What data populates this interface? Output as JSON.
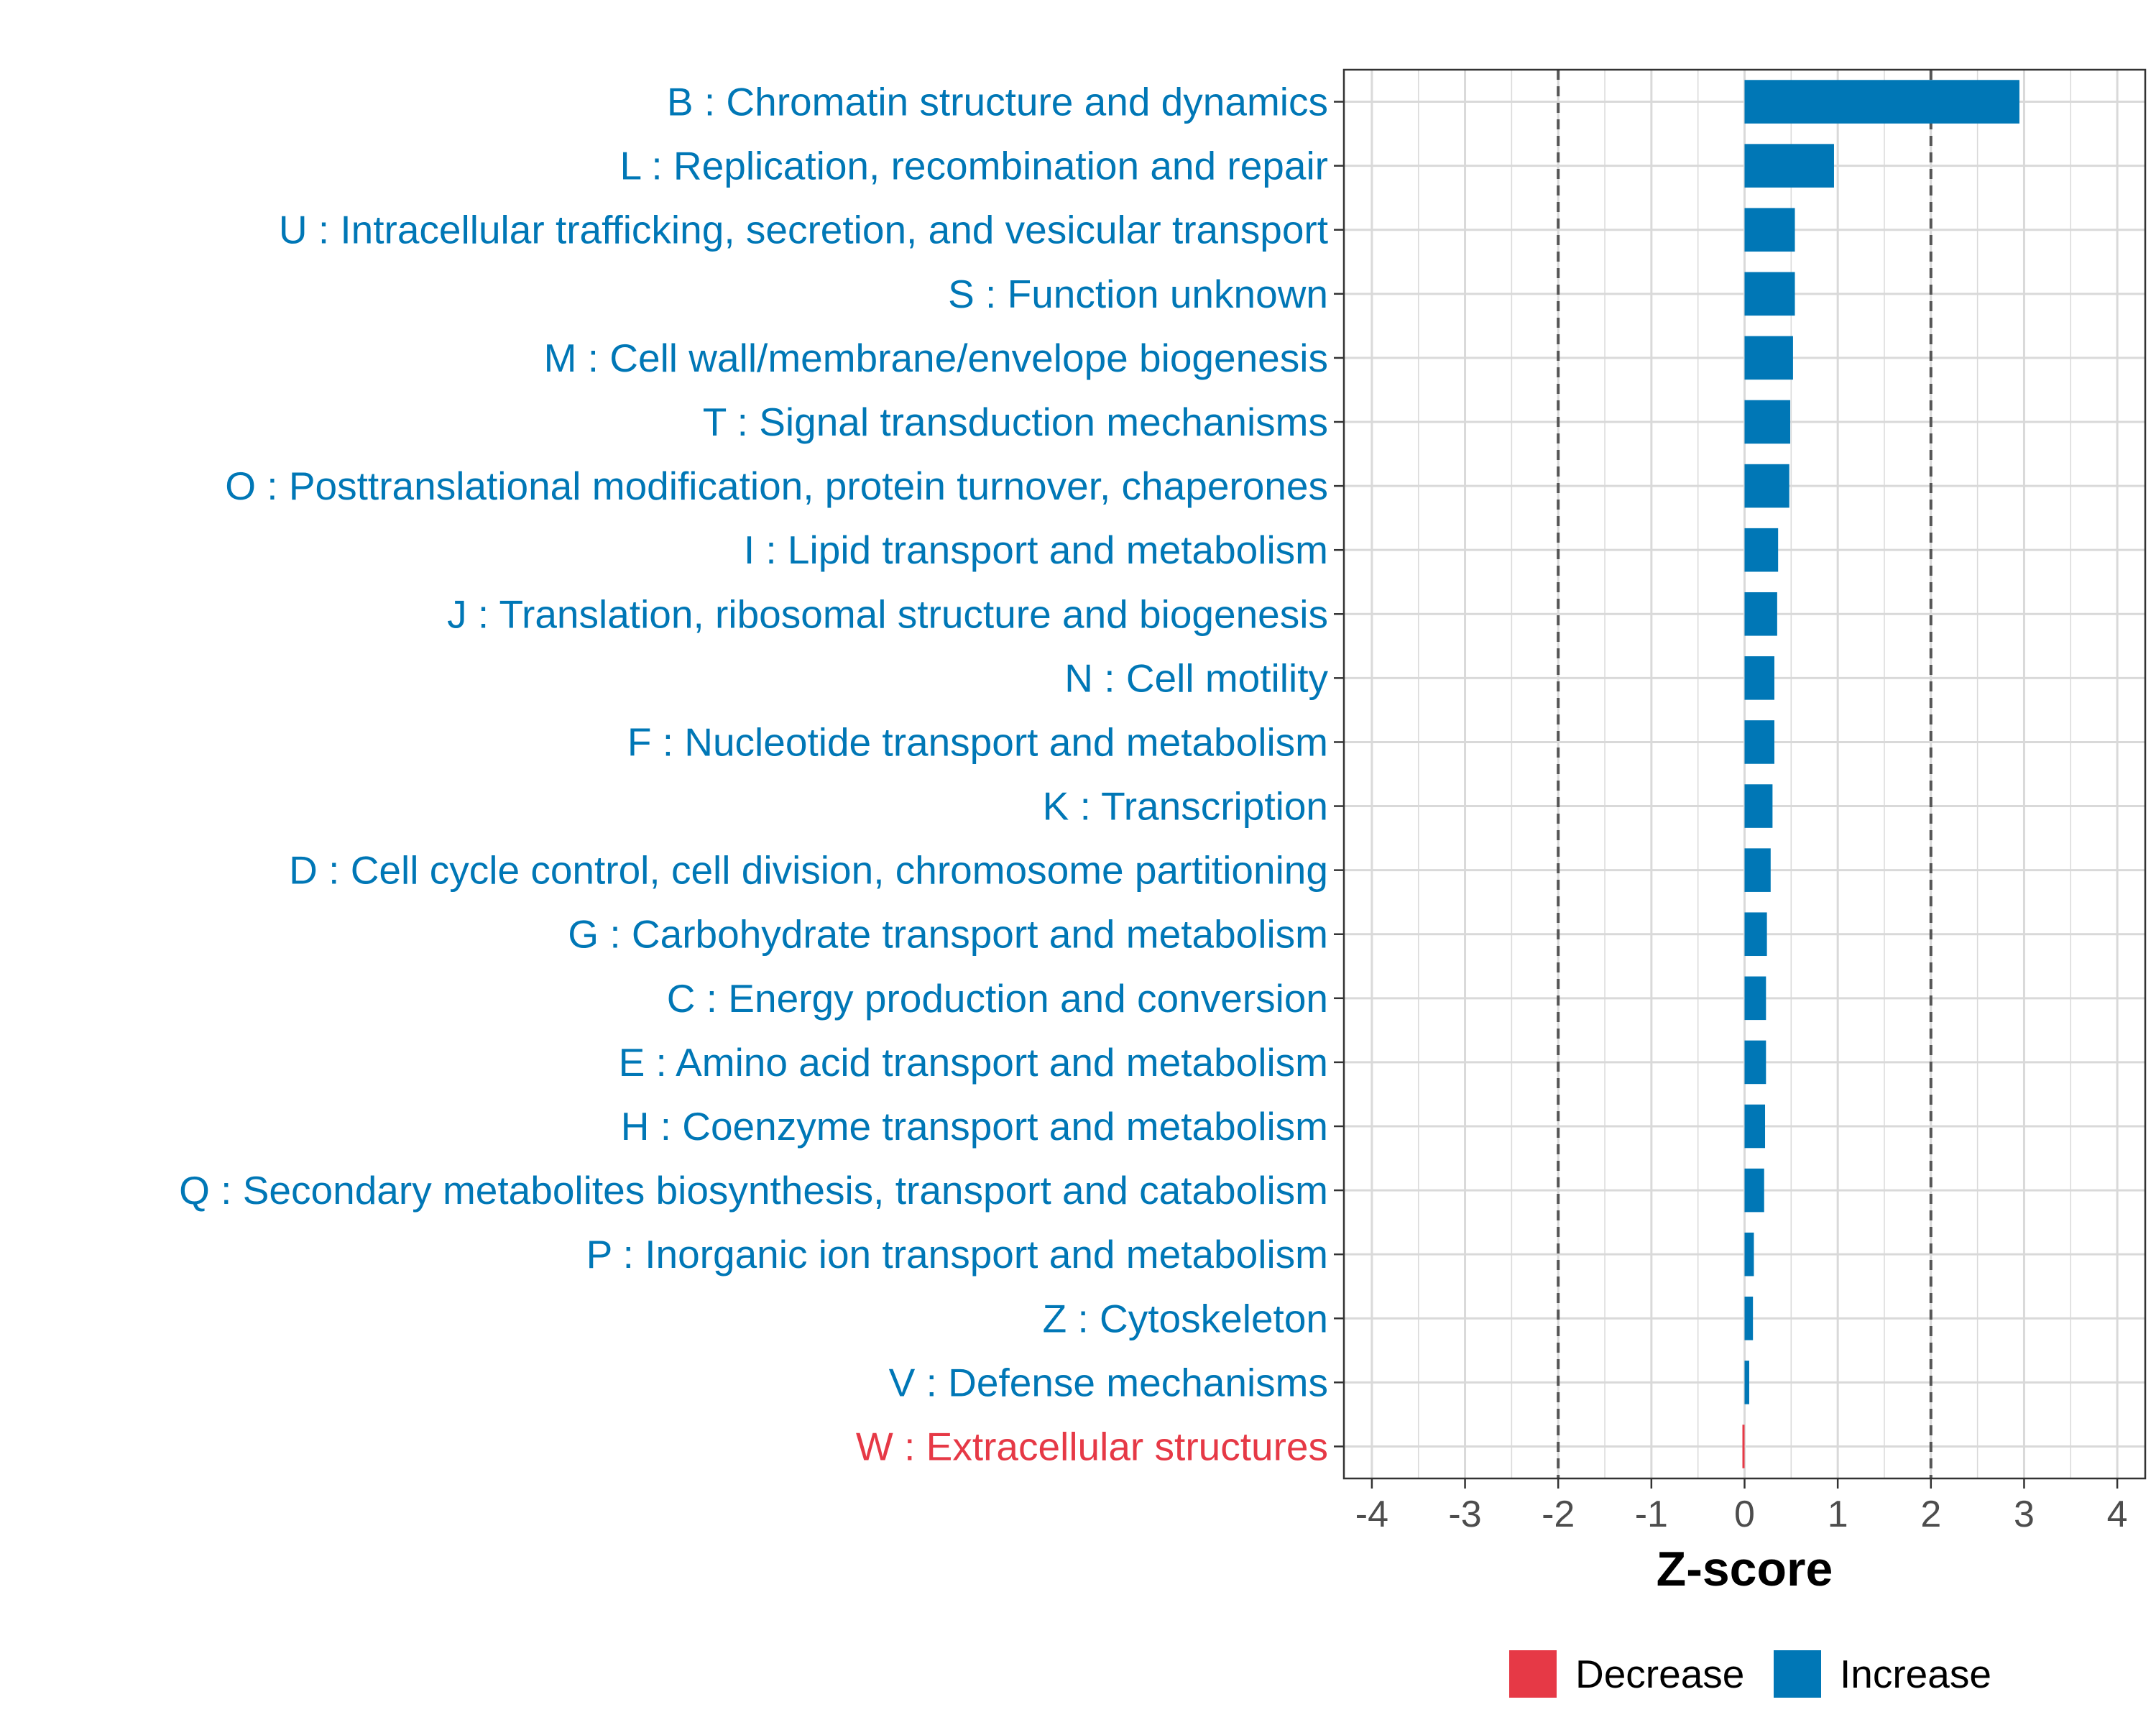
{
  "chart_data": {
    "type": "bar",
    "orientation": "horizontal",
    "title": "",
    "xlabel": "Z-score",
    "ylabel": "",
    "xlim": [
      -4.3,
      4.3
    ],
    "x_ticks": [
      -4,
      -3,
      -2,
      -1,
      0,
      1,
      2,
      3,
      4
    ],
    "x_tick_labels": [
      "-4",
      "-3",
      "-2",
      "-1",
      "0",
      "1",
      "2",
      "3",
      "4"
    ],
    "threshold_lines": [
      -2,
      2
    ],
    "grid": true,
    "categories": [
      "B : Chromatin structure and dynamics",
      "L : Replication, recombination and repair",
      "U : Intracellular trafficking, secretion, and vesicular transport",
      "S : Function unknown",
      "M : Cell wall/membrane/envelope biogenesis",
      "T : Signal transduction mechanisms",
      "O : Posttranslational modification, protein turnover, chaperones",
      "I : Lipid transport and metabolism",
      "J : Translation, ribosomal structure and biogenesis",
      "N : Cell motility",
      "F : Nucleotide transport and metabolism",
      "K : Transcription",
      "D : Cell cycle control, cell division, chromosome partitioning",
      "G : Carbohydrate transport and metabolism",
      "C : Energy production and conversion",
      "E : Amino acid transport and metabolism",
      "H : Coenzyme transport and metabolism",
      "Q : Secondary metabolites biosynthesis, transport and catabolism",
      "P : Inorganic ion transport and metabolism",
      "Z : Cytoskeleton",
      "V : Defense mechanisms",
      "W : Extracellular structures"
    ],
    "values": [
      2.95,
      0.96,
      0.54,
      0.54,
      0.52,
      0.49,
      0.48,
      0.36,
      0.35,
      0.32,
      0.32,
      0.3,
      0.28,
      0.24,
      0.23,
      0.23,
      0.22,
      0.21,
      0.1,
      0.09,
      0.05,
      -0.02
    ],
    "direction": [
      "Increase",
      "Increase",
      "Increase",
      "Increase",
      "Increase",
      "Increase",
      "Increase",
      "Increase",
      "Increase",
      "Increase",
      "Increase",
      "Increase",
      "Increase",
      "Increase",
      "Increase",
      "Increase",
      "Increase",
      "Increase",
      "Increase",
      "Increase",
      "Increase",
      "Decrease"
    ],
    "legend": {
      "position": "bottom",
      "entries": [
        {
          "label": "Decrease",
          "color": "#e63946"
        },
        {
          "label": "Increase",
          "color": "#0077b6"
        }
      ]
    },
    "colors": {
      "Increase": "#0077b6",
      "Decrease": "#e63946",
      "grid": "#d9d9d9",
      "panel_border": "#333333",
      "threshold": "#555555"
    }
  }
}
